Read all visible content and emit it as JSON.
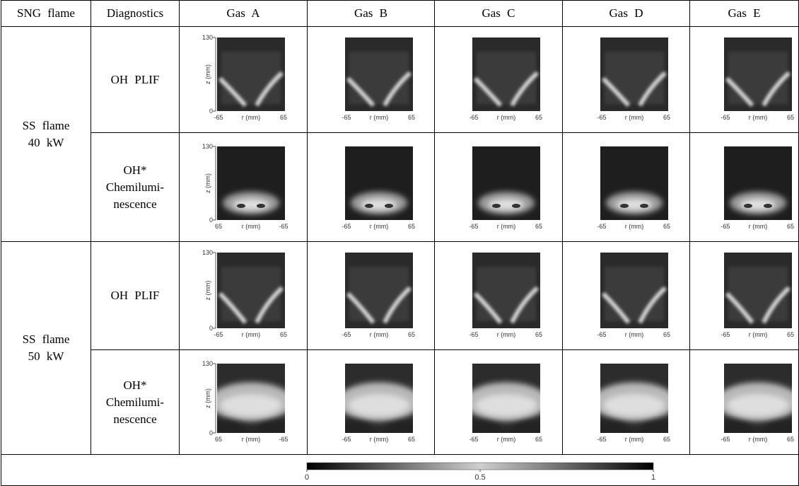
{
  "table": {
    "header": [
      "SNG flame",
      "Diagnostics",
      "Gas A",
      "Gas B",
      "Gas C",
      "Gas D",
      "Gas E"
    ],
    "groups": [
      {
        "label": [
          "SS flame",
          "40 kW"
        ],
        "rows": [
          {
            "diagnostic": [
              "OH PLIF"
            ],
            "images": [
              {
                "z": [
                  "130",
                  "0"
                ],
                "r": [
                  "-65",
                  "65"
                ]
              },
              {
                "r": [
                  "-65",
                  "65"
                ]
              },
              {
                "r": [
                  "-65",
                  "65"
                ]
              },
              {
                "r": [
                  "-65",
                  "65"
                ]
              },
              {
                "r": [
                  "-65",
                  "65"
                ]
              }
            ]
          },
          {
            "diagnostic": [
              "OH*",
              "Chemilumi-",
              "nescence"
            ],
            "images": [
              {
                "z": [
                  "130",
                  "0"
                ],
                "r": [
                  "65",
                  "-65"
                ]
              },
              {
                "r": [
                  "-65",
                  "65"
                ]
              },
              {
                "r": [
                  "-65",
                  "65"
                ]
              },
              {
                "r": [
                  "-65",
                  "65"
                ]
              },
              {
                "r": [
                  "-65",
                  "65"
                ]
              }
            ]
          }
        ]
      },
      {
        "label": [
          "SS flame",
          "50 kW"
        ],
        "rows": [
          {
            "diagnostic": [
              "OH PLIF"
            ],
            "images": [
              {
                "z": [
                  "130",
                  "0"
                ],
                "r": [
                  "-65",
                  "65"
                ]
              },
              {
                "r": [
                  "-65",
                  "65"
                ]
              },
              {
                "r": [
                  "-65",
                  "65"
                ]
              },
              {
                "r": [
                  "-65",
                  "65"
                ]
              },
              {
                "r": [
                  "-65",
                  "65"
                ]
              }
            ]
          },
          {
            "diagnostic": [
              "OH*",
              "Chemilumi-",
              "nescence"
            ],
            "images": [
              {
                "z": [
                  "130",
                  "0"
                ],
                "r": [
                  "65",
                  "-65"
                ]
              },
              {
                "r": [
                  "-65",
                  "65"
                ]
              },
              {
                "r": [
                  "-65",
                  "65"
                ]
              },
              {
                "r": [
                  "-65",
                  "65"
                ]
              },
              {
                "r": [
                  "-65",
                  "65"
                ]
              }
            ]
          }
        ]
      }
    ]
  },
  "axis_labels": {
    "r": "r (mm)",
    "z": "z (mm)"
  },
  "colorbar": {
    "lim": [
      0,
      1
    ],
    "ticks": [
      0,
      0.5,
      1
    ]
  }
}
